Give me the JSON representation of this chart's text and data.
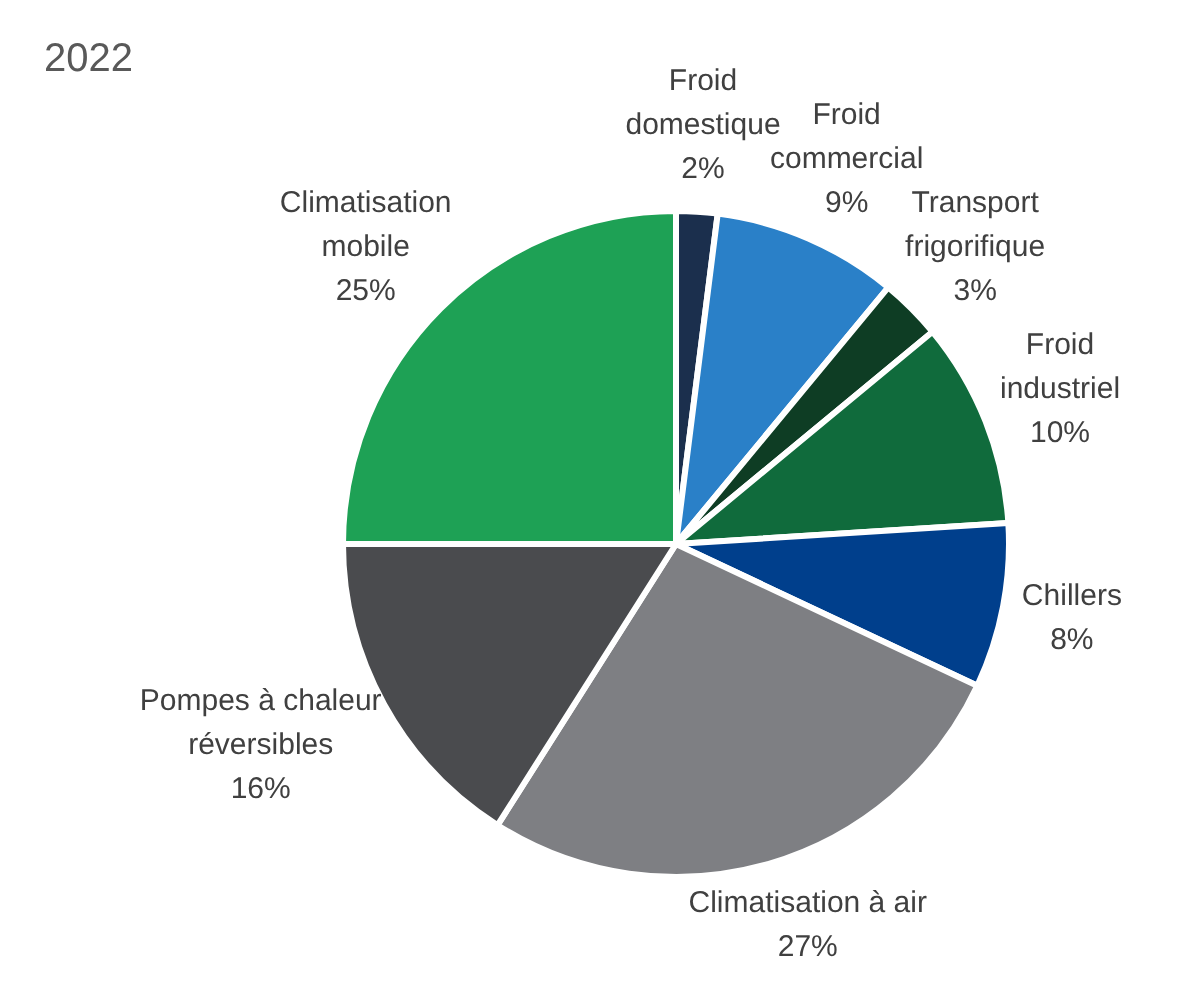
{
  "chart_data": {
    "type": "pie",
    "title": "2022",
    "categories": [
      "Froid domestique",
      "Froid commercial",
      "Transport frigorifique",
      "Froid industriel",
      "Chillers",
      "Climatisation à air",
      "Pompes à chaleur réversibles",
      "Climatisation mobile"
    ],
    "values": [
      2,
      9,
      3,
      10,
      8,
      27,
      16,
      25
    ],
    "colors": [
      "#1b2f4d",
      "#2a80c8",
      "#0e3d24",
      "#106b3c",
      "#003f8c",
      "#7e7f83",
      "#4a4b4e",
      "#1ea155"
    ],
    "value_labels": [
      "2%",
      "9%",
      "3%",
      "10%",
      "8%",
      "27%",
      "16%",
      "25%"
    ],
    "legend": false
  }
}
